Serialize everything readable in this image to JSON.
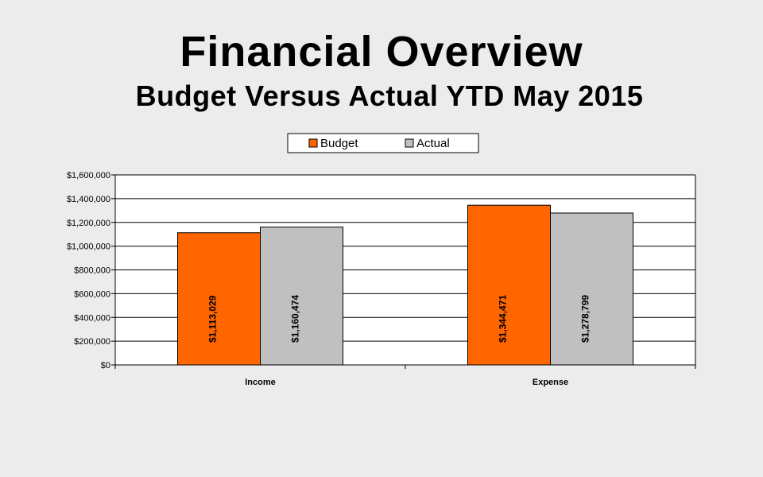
{
  "slide": {
    "title": "Financial Overview",
    "subtitle": "Budget Versus Actual YTD May 2015"
  },
  "chart_data": {
    "type": "bar",
    "categories": [
      "Income",
      "Expense"
    ],
    "series": [
      {
        "name": "Budget",
        "values": [
          1113029,
          1344471
        ],
        "labels": [
          "$1,113,029",
          "$1,344,471"
        ],
        "color": "#ff6600"
      },
      {
        "name": "Actual",
        "values": [
          1160474,
          1278799
        ],
        "labels": [
          "$1,160,474",
          "$1,278,799"
        ],
        "color": "#c0c0c0"
      }
    ],
    "ylim": [
      0,
      1600000
    ],
    "yticks": [
      0,
      200000,
      400000,
      600000,
      800000,
      1000000,
      1200000,
      1400000,
      1600000
    ],
    "ytick_labels": [
      "$0",
      "$200,000",
      "$400,000",
      "$600,000",
      "$800,000",
      "$1,000,000",
      "$1,200,000",
      "$1,400,000",
      "$1,600,000"
    ],
    "grid": true,
    "legend_position": "top-center"
  }
}
